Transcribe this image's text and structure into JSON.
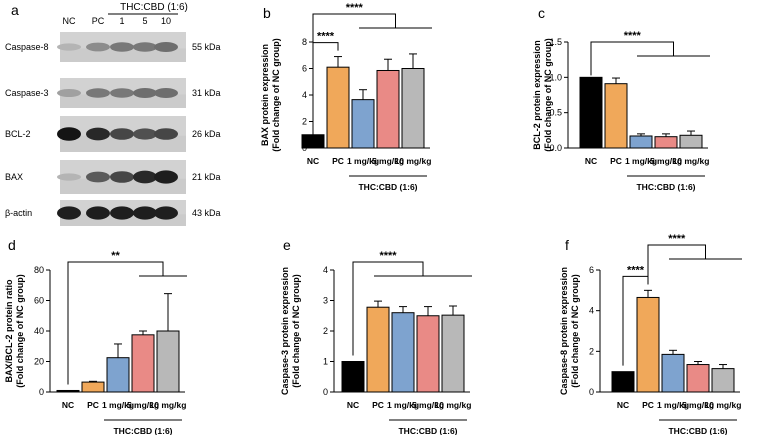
{
  "colors": {
    "nc": "#000000",
    "pc": "#f0a85a",
    "t1": "#7ea3cf",
    "t5": "#e98a86",
    "t10": "#b8b8b8",
    "outline": "#000000",
    "error": "#000000"
  },
  "blot": {
    "panel_letter": "a",
    "lanes": [
      "NC",
      "PC",
      "1",
      "5",
      "10"
    ],
    "group_label": "THC:CBD (1:6)",
    "rows": [
      {
        "protein": "Caspase-8",
        "kda": "55 kDa",
        "intensity": [
          0.15,
          0.35,
          0.45,
          0.45,
          0.5
        ]
      },
      {
        "protein": "Caspase-3",
        "kda": "31 kDa",
        "intensity": [
          0.25,
          0.45,
          0.45,
          0.5,
          0.5
        ]
      },
      {
        "protein": "BCL-2",
        "kda": "26 kDa",
        "intensity": [
          0.95,
          0.85,
          0.7,
          0.65,
          0.7
        ]
      },
      {
        "protein": "BAX",
        "kda": "21 kDa",
        "intensity": [
          0.15,
          0.6,
          0.7,
          0.85,
          0.9
        ]
      },
      {
        "protein": "β-actin",
        "kda": "43 kDa",
        "intensity": [
          0.9,
          0.9,
          0.9,
          0.9,
          0.9
        ]
      }
    ]
  },
  "chart_data": [
    {
      "panel": "b",
      "type": "bar",
      "categories": [
        "NC",
        "PC",
        "1 mg/kg",
        "5 mg/kg",
        "10 mg/kg"
      ],
      "values": [
        1.0,
        6.1,
        3.65,
        5.85,
        6.0
      ],
      "errors": [
        0.0,
        0.8,
        0.75,
        0.85,
        1.1
      ],
      "ylabel": "BAX protein expression",
      "ylabel2": "(Fold change of NC group)",
      "ylim": [
        0,
        8
      ],
      "yticks": [
        0,
        2,
        4,
        6,
        8
      ],
      "group_label": "THC:CBD (1:6)",
      "significance": [
        {
          "text": "****",
          "type": "pair",
          "from": 0,
          "to": 1
        },
        {
          "text": "****",
          "type": "group",
          "from": 0,
          "to": [
            2,
            4
          ]
        }
      ]
    },
    {
      "panel": "c",
      "type": "bar",
      "categories": [
        "NC",
        "PC",
        "1 mg/kg",
        "5 mg/kg",
        "10 mg/kg"
      ],
      "values": [
        1.0,
        0.91,
        0.17,
        0.16,
        0.18
      ],
      "errors": [
        0.0,
        0.08,
        0.03,
        0.04,
        0.06
      ],
      "ylabel": "BCL-2 protein expression",
      "ylabel2": "(Fold change of NC group)",
      "ylim": [
        0,
        1.5
      ],
      "yticks": [
        0.0,
        0.5,
        1.0,
        1.5
      ],
      "group_label": "THC:CBD (1:6)",
      "significance": [
        {
          "text": "****",
          "type": "group",
          "from": 0,
          "to": [
            2,
            4
          ]
        }
      ]
    },
    {
      "panel": "d",
      "type": "bar",
      "categories": [
        "NC",
        "PC",
        "1 mg/kg",
        "5 mg/kg",
        "10 mg/kg"
      ],
      "values": [
        1.0,
        6.5,
        22.5,
        37.5,
        40.0
      ],
      "errors": [
        0.0,
        0.5,
        9.0,
        2.5,
        24.5
      ],
      "ylabel": "BAX/BCL-2 protein ratio",
      "ylabel2": "(Fold change of NC group)",
      "ylim": [
        0,
        80
      ],
      "yticks": [
        0,
        20,
        40,
        60,
        80
      ],
      "group_label": "THC:CBD (1:6)",
      "significance": [
        {
          "text": "**",
          "type": "group",
          "from": 0,
          "to": [
            3,
            4
          ]
        }
      ]
    },
    {
      "panel": "e",
      "type": "bar",
      "categories": [
        "NC",
        "PC",
        "1 mg/kg",
        "5 mg/kg",
        "10 mg/kg"
      ],
      "values": [
        1.0,
        2.78,
        2.6,
        2.5,
        2.52
      ],
      "errors": [
        0.0,
        0.2,
        0.2,
        0.3,
        0.3
      ],
      "ylabel": "Caspase-3 protein expression",
      "ylabel2": "(Fold change of NC group)",
      "ylim": [
        0,
        4
      ],
      "yticks": [
        0,
        1,
        2,
        3,
        4
      ],
      "group_label": "THC:CBD (1:6)",
      "significance": [
        {
          "text": "****",
          "type": "group",
          "from": 0,
          "to": [
            1,
            4
          ]
        }
      ]
    },
    {
      "panel": "f",
      "type": "bar",
      "categories": [
        "NC",
        "PC",
        "1 mg/kg",
        "5 mg/kg",
        "10 mg/kg"
      ],
      "values": [
        1.0,
        4.65,
        1.85,
        1.35,
        1.15
      ],
      "errors": [
        0.0,
        0.35,
        0.2,
        0.15,
        0.2
      ],
      "ylabel": "Caspase-8 protein expression",
      "ylabel2": "(Fold change of NC group)",
      "ylim": [
        0,
        6
      ],
      "yticks": [
        0,
        2,
        4,
        6
      ],
      "group_label": "THC:CBD (1:6)",
      "significance": [
        {
          "text": "****",
          "type": "pair",
          "from": 0,
          "to": 1
        },
        {
          "text": "****",
          "type": "group",
          "from": 1,
          "to": [
            2,
            4
          ]
        }
      ]
    }
  ]
}
